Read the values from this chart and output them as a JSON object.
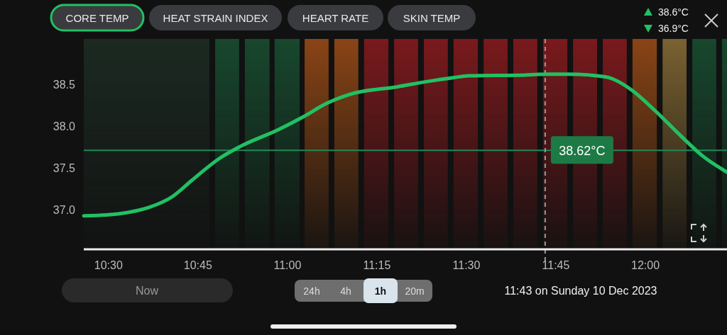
{
  "chart_data": {
    "type": "line",
    "title": "CORE TEMP",
    "x": [
      10.431,
      10.494,
      10.554,
      10.613,
      10.679,
      10.732,
      10.812,
      10.865,
      10.976,
      11.044,
      11.109,
      11.175,
      11.308,
      11.387,
      11.466,
      11.506,
      11.665,
      11.726,
      11.784,
      11.843,
      11.897,
      11.962,
      12.028,
      12.095,
      12.161,
      12.228
    ],
    "series": [
      {
        "color": "#22c063",
        "values": [
          36.93,
          36.94,
          36.97,
          37.03,
          37.16,
          37.35,
          37.62,
          37.75,
          37.96,
          38.11,
          38.27,
          38.38,
          38.47,
          38.53,
          38.58,
          38.6,
          38.61,
          38.62,
          38.62,
          38.61,
          38.58,
          38.43,
          38.18,
          37.9,
          37.64,
          37.45
        ]
      }
    ],
    "xlim": [
      10.431,
      12.228
    ],
    "xticks": [
      {
        "value": 10.5,
        "label": "10:30"
      },
      {
        "value": 10.75,
        "label": "10:45"
      },
      {
        "value": 11,
        "label": "11:00"
      },
      {
        "value": 11.25,
        "label": "11:15"
      },
      {
        "value": 11.5,
        "label": "11:30"
      },
      {
        "value": 11.75,
        "label": "11:45"
      },
      {
        "value": 12,
        "label": "12:00"
      }
    ],
    "ylim": [
      36.53,
      39.04
    ],
    "yticks": [
      {
        "value": 37,
        "label": "37.0"
      },
      {
        "value": 37.5,
        "label": "37.5"
      },
      {
        "value": 38,
        "label": "38.0"
      },
      {
        "value": 38.5,
        "label": "38.5"
      }
    ],
    "ref_lines": [
      {
        "axis": "y",
        "value": 37.71,
        "color": "#1f8a55"
      },
      {
        "axis": "x",
        "value": 11.72,
        "color": "#9a9a9a",
        "line_style": "dashed"
      }
    ],
    "bands": [
      {
        "axis": "x",
        "from": 10.431,
        "to": 10.782,
        "color": "#1c2a22"
      },
      {
        "axis": "x",
        "from": 10.798,
        "to": 10.865,
        "color": "#18482e"
      },
      {
        "axis": "x",
        "from": 10.881,
        "to": 10.95,
        "color": "#18482e"
      },
      {
        "axis": "x",
        "from": 10.964,
        "to": 11.034,
        "color": "#18482e"
      },
      {
        "axis": "x",
        "from": 11.048,
        "to": 11.115,
        "color": "#8a4516"
      },
      {
        "axis": "x",
        "from": 11.131,
        "to": 11.198,
        "color": "#8a4516"
      },
      {
        "axis": "x",
        "from": 11.214,
        "to": 11.282,
        "color": "#7a1a1d"
      },
      {
        "axis": "x",
        "from": 11.298,
        "to": 11.365,
        "color": "#7a1a1d"
      },
      {
        "axis": "x",
        "from": 11.381,
        "to": 11.448,
        "color": "#7a1a1d"
      },
      {
        "axis": "x",
        "from": 11.464,
        "to": 11.532,
        "color": "#7a1a1d"
      },
      {
        "axis": "x",
        "from": 11.548,
        "to": 11.615,
        "color": "#7a1a1d"
      },
      {
        "axis": "x",
        "from": 11.631,
        "to": 11.698,
        "color": "#7a1a1d"
      },
      {
        "axis": "x",
        "from": 11.714,
        "to": 11.782,
        "color": "#7a1a1d"
      },
      {
        "axis": "x",
        "from": 11.798,
        "to": 11.865,
        "color": "#7a1a1d"
      },
      {
        "axis": "x",
        "from": 11.881,
        "to": 11.948,
        "color": "#7a1a1d"
      },
      {
        "axis": "x",
        "from": 11.964,
        "to": 12.032,
        "color": "#8a4516"
      },
      {
        "axis": "x",
        "from": 12.048,
        "to": 12.115,
        "color": "#7a6232"
      },
      {
        "axis": "x",
        "from": 12.131,
        "to": 12.198,
        "color": "#18482e"
      },
      {
        "axis": "x",
        "from": 12.214,
        "to": 12.228,
        "color": "#18482e"
      }
    ],
    "annotations": [
      "HEAT STRAIN INDEX",
      "HEART RATE",
      "SKIN TEMP",
      "38.6°C",
      "36.9°C",
      "Now",
      "24h",
      "4h",
      "1h",
      "20m",
      "11:43 on Sunday 10 Dec 2023",
      "38.62°C"
    ],
    "grid": false,
    "marker": "none",
    "line_style": "solid"
  }
}
